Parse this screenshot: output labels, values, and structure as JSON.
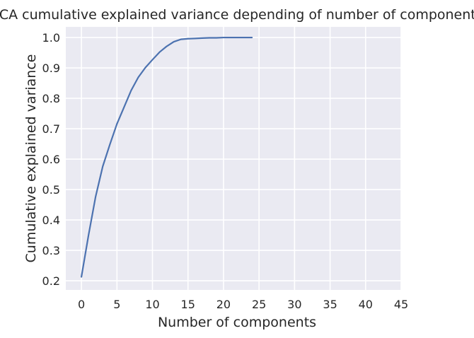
{
  "chart_data": {
    "type": "line",
    "title": "PCA cumulative explained variance depending of number of components",
    "xlabel": "Number of components",
    "ylabel": "Cumulative explained variance",
    "xlim": [
      -2.2,
      45
    ],
    "ylim": [
      0.17,
      1.035
    ],
    "xticks": [
      0,
      5,
      10,
      15,
      20,
      25,
      30,
      35,
      40,
      45
    ],
    "xtick_labels": [
      "0",
      "5",
      "10",
      "15",
      "20",
      "25",
      "30",
      "35",
      "40",
      "45"
    ],
    "yticks": [
      0.2,
      0.3,
      0.4,
      0.5,
      0.6,
      0.7,
      0.8,
      0.9,
      1.0
    ],
    "ytick_labels": [
      "0.2",
      "0.3",
      "0.4",
      "0.5",
      "0.6",
      "0.7",
      "0.8",
      "0.9",
      "1.0"
    ],
    "grid": true,
    "style": {
      "background": "#eaeaf2",
      "grid_color": "#ffffff",
      "line_color": "#4c72b0"
    },
    "series": [
      {
        "x": [
          0,
          1,
          2,
          3,
          4,
          5,
          6,
          7,
          8,
          9,
          10,
          11,
          12,
          13,
          14,
          15,
          16,
          17,
          18,
          19,
          20,
          21,
          22,
          23,
          24
        ],
        "values": [
          0.213,
          0.35,
          0.477,
          0.576,
          0.648,
          0.716,
          0.771,
          0.826,
          0.869,
          0.901,
          0.927,
          0.952,
          0.971,
          0.986,
          0.994,
          0.996,
          0.997,
          0.998,
          0.999,
          0.999,
          1.0,
          1.0,
          1.0,
          1.0,
          1.0
        ]
      }
    ]
  }
}
